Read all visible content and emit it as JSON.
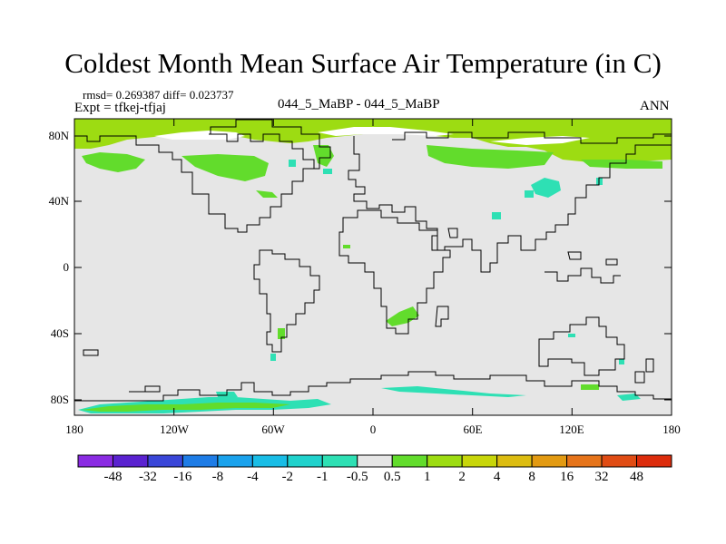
{
  "title": "Coldest Month Mean Surface Air Temperature (in C)",
  "stats": "rmsd= 0.269387 diff= 0.023737",
  "expt": "Expt = tfkej-tfjaj",
  "comparison": "044_5_MaBP - 044_5_MaBP",
  "season": "ANN",
  "lat_labels": [
    "80N",
    "40N",
    "0",
    "40S",
    "80S"
  ],
  "lon_labels": [
    "180",
    "120W",
    "60W",
    "0",
    "60E",
    "120E",
    "180"
  ],
  "colorbar": {
    "labels": [
      "-48",
      "-32",
      "-16",
      "-8",
      "-4",
      "-2",
      "-1",
      "-0.5",
      "0.5",
      "1",
      "2",
      "4",
      "8",
      "16",
      "32",
      "48"
    ],
    "colors": [
      "#8a2be2",
      "#5a22d0",
      "#3a46d8",
      "#1e7ce6",
      "#1aa2ec",
      "#19bde6",
      "#20d2cc",
      "#2ee0b4",
      "#e6e6e6",
      "#62dc2c",
      "#9ddc12",
      "#c8d60a",
      "#dcbc10",
      "#e29a12",
      "#e6741a",
      "#e04c14",
      "#dc2c0c"
    ]
  },
  "map_colors": {
    "background": "#e6e6e6",
    "light_green": "#9ddc12",
    "green": "#62dc2c",
    "teal": "#2ee0b4",
    "coast": "#000000"
  }
}
